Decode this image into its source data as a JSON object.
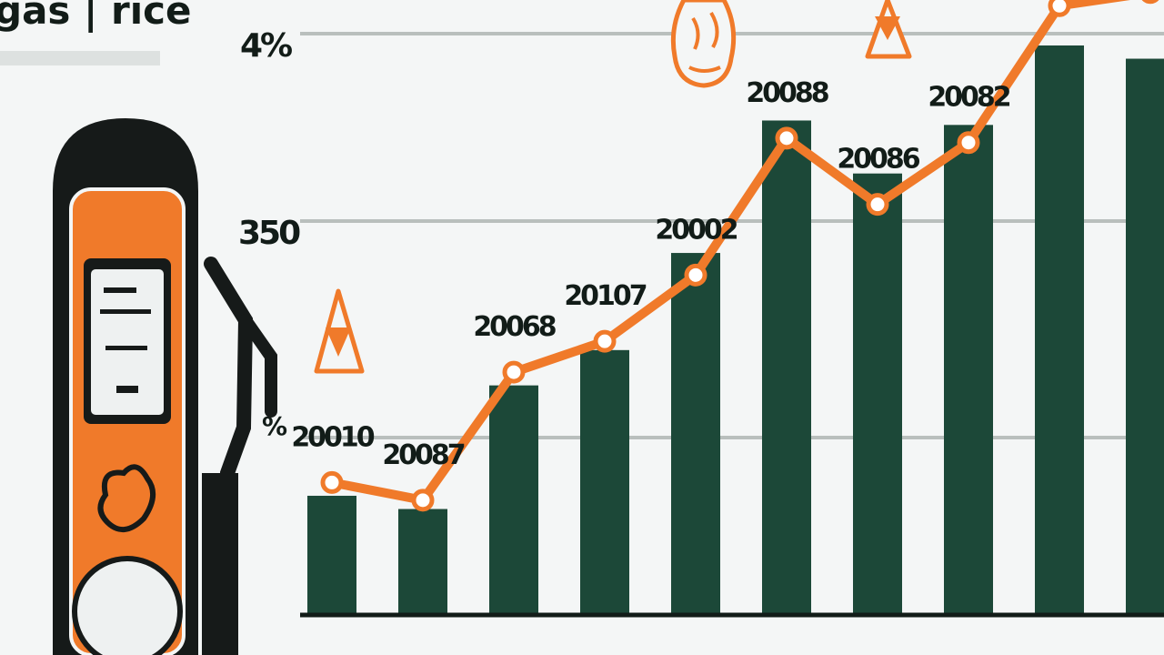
{
  "header": {
    "title": "gas | rice"
  },
  "colors": {
    "bar": "#1c4838",
    "line": "#f07a2a",
    "gridline": "#b9bfbd",
    "text": "#121c18",
    "pump_body": "#f07a2a",
    "pump_dark": "#161a19"
  },
  "icons": [
    "gas-pump-icon",
    "warning-triangle-icon",
    "flame-icon"
  ],
  "chart_data": {
    "type": "bar",
    "title": "gas | rice",
    "xlabel": "",
    "ylabel": "",
    "y_ticks": [
      "4%",
      "350",
      "%"
    ],
    "categories": [
      "20010",
      "20087",
      "20068",
      "20107",
      "20002",
      "20088",
      "20086",
      "20082",
      "",
      ""
    ],
    "series": [
      {
        "type": "bar",
        "values": [
          27,
          24,
          52,
          60,
          82,
          112,
          100,
          111,
          129,
          126
        ]
      },
      {
        "type": "line",
        "values": [
          30,
          26,
          55,
          62,
          77,
          108,
          93,
          107,
          138,
          141
        ]
      }
    ],
    "ylim": [
      0,
      136
    ],
    "grid": true,
    "legend": "none"
  }
}
